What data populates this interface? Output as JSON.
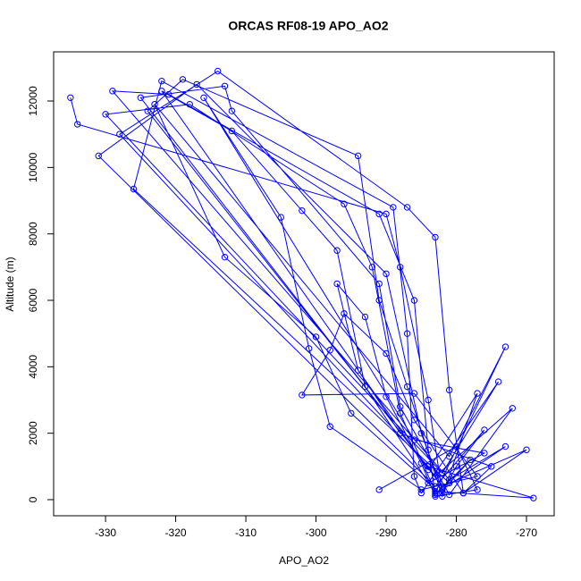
{
  "chart_data": {
    "type": "line",
    "title": "ORCAS RF08-19 APO_AO2",
    "x_label": "APO_AO2",
    "y_label": "Altitude (m)",
    "color": "#0000ff",
    "markers": true,
    "xlim": [
      -337.4,
      -266.05
    ],
    "ylim": [
      -484,
      13480
    ],
    "xticks": [
      -330,
      -320,
      -310,
      -300,
      -290,
      -280,
      -270
    ],
    "yticks": [
      0,
      2000,
      4000,
      6000,
      8000,
      10000,
      12000
    ],
    "x": [
      -335,
      -334,
      -290,
      -288,
      -284,
      -282,
      -280,
      -276,
      -283,
      -331,
      -317,
      -290,
      -285,
      -282,
      -273,
      -281,
      -329,
      -321,
      -291,
      -286,
      -284,
      -283,
      -278,
      -281,
      -326,
      -322,
      -289,
      -287,
      -286,
      -285,
      -274,
      -282,
      -330,
      -318,
      -296,
      -292,
      -288,
      -283,
      -269,
      -284,
      -328,
      -314,
      -287,
      -283,
      -281,
      -279,
      -270,
      -282,
      -325,
      -313,
      -312,
      -291,
      -288,
      -281,
      -272,
      -283,
      -324,
      -319,
      -294,
      -291,
      -287,
      -282,
      -277,
      -284,
      -322,
      -312,
      -302,
      -297,
      -293,
      -283,
      -273,
      -281,
      -323,
      -313,
      -300,
      -295,
      -284,
      -276,
      -286,
      -316,
      -305,
      -301,
      -298,
      -285,
      -277,
      -286,
      -302,
      -298,
      -296,
      -290,
      -286,
      -279,
      -275,
      -288,
      -294,
      -297,
      -293,
      -290,
      -285,
      -283,
      -277,
      -280,
      -291
    ],
    "values": [
      12100,
      11300,
      8600,
      7000,
      3000,
      200,
      1000,
      2100,
      400,
      10350,
      12500,
      6800,
      2000,
      300,
      1600,
      600,
      12300,
      12200,
      8600,
      6000,
      1500,
      150,
      1200,
      500,
      9350,
      12600,
      8800,
      5000,
      700,
      200,
      3550,
      800,
      11600,
      11900,
      8900,
      7000,
      2600,
      250,
      50,
      1000,
      11000,
      12900,
      8800,
      7900,
      3300,
      200,
      1500,
      400,
      12100,
      12450,
      11700,
      6500,
      2800,
      150,
      2750,
      700,
      11700,
      12650,
      10350,
      6000,
      3400,
      100,
      3200,
      900,
      12300,
      11100,
      8700,
      7500,
      3400,
      200,
      4600,
      1300,
      11900,
      7300,
      4900,
      2600,
      500,
      1400,
      1800,
      12100,
      8500,
      4550,
      2200,
      300,
      700,
      3200,
      3150,
      4500,
      5600,
      4400,
      2400,
      200,
      1000,
      2000,
      3900,
      6500,
      5500,
      3100,
      1100,
      100,
      300,
      1600,
      300
    ]
  }
}
